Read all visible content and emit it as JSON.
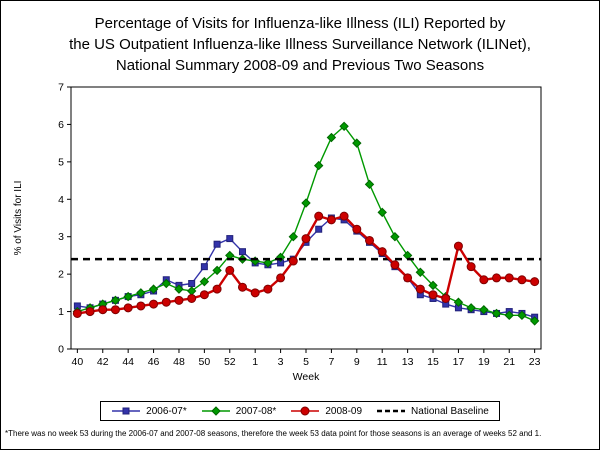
{
  "title_lines": [
    "Percentage of Visits for Influenza-like Illness (ILI) Reported by",
    "the US Outpatient Influenza-like Illness Surveillance Network (ILINet),",
    "National Summary 2008-09 and Previous Two Seasons"
  ],
  "footnote": "*There was no week 53 during the 2006-07 and 2007-08 seasons, therefore the week 53 data point for those seasons is an average of weeks 52 and 1.",
  "chart_data": {
    "type": "line",
    "title": "Percentage of Visits for Influenza-like Illness (ILI) Reported by the US Outpatient Influenza-like Illness Surveillance Network (ILINet), National Summary 2008-09 and Previous Two Seasons",
    "xlabel": "Week",
    "ylabel": "% of Visits for ILI",
    "ylim": [
      0,
      7
    ],
    "y_ticks": [
      0,
      1,
      2,
      3,
      4,
      5,
      6,
      7
    ],
    "grid": false,
    "legend_position": "bottom",
    "x_labeled_every": 2,
    "x_categories": [
      "40",
      "41",
      "42",
      "43",
      "44",
      "45",
      "46",
      "47",
      "48",
      "49",
      "50",
      "51",
      "52",
      "53",
      "1",
      "2",
      "3",
      "4",
      "5",
      "6",
      "7",
      "8",
      "9",
      "10",
      "11",
      "12",
      "13",
      "14",
      "15",
      "16",
      "17",
      "18",
      "19",
      "20",
      "21",
      "22",
      "23"
    ],
    "baseline": {
      "label": "National Baseline",
      "value": 2.4,
      "color": "#000000",
      "style": "dashed"
    },
    "series": [
      {
        "name": "2006-07*",
        "color": "#3333AA",
        "edge": "#22227A",
        "marker": "square",
        "line_width": 1.4,
        "values": [
          1.15,
          1.1,
          1.2,
          1.3,
          1.4,
          1.45,
          1.55,
          1.85,
          1.7,
          1.75,
          2.2,
          2.8,
          2.95,
          2.6,
          2.3,
          2.25,
          2.3,
          2.4,
          2.85,
          3.2,
          3.5,
          3.45,
          3.15,
          2.85,
          2.55,
          2.2,
          1.9,
          1.45,
          1.35,
          1.2,
          1.1,
          1.05,
          1.0,
          0.95,
          1.0,
          0.95,
          0.85
        ]
      },
      {
        "name": "2007-08*",
        "color": "#009900",
        "edge": "#006600",
        "marker": "diamond",
        "line_width": 1.4,
        "values": [
          1.0,
          1.1,
          1.2,
          1.3,
          1.4,
          1.5,
          1.6,
          1.75,
          1.6,
          1.55,
          1.8,
          2.1,
          2.5,
          2.4,
          2.35,
          2.3,
          2.45,
          3.0,
          3.9,
          4.9,
          5.65,
          5.95,
          5.5,
          4.4,
          3.65,
          3.0,
          2.5,
          2.05,
          1.7,
          1.4,
          1.25,
          1.1,
          1.05,
          0.95,
          0.9,
          0.9,
          0.75
        ]
      },
      {
        "name": "2008-09",
        "color": "#CC0000",
        "edge": "#7F0000",
        "marker": "circle",
        "line_width": 2.4,
        "values": [
          0.95,
          1.0,
          1.05,
          1.05,
          1.1,
          1.15,
          1.2,
          1.25,
          1.3,
          1.35,
          1.45,
          1.6,
          2.1,
          1.65,
          1.5,
          1.6,
          1.9,
          2.35,
          2.95,
          3.55,
          3.45,
          3.55,
          3.2,
          2.9,
          2.6,
          2.25,
          1.9,
          1.6,
          1.45,
          1.35,
          2.75,
          2.2,
          1.85,
          1.9,
          1.9,
          1.85,
          1.8
        ]
      }
    ]
  }
}
